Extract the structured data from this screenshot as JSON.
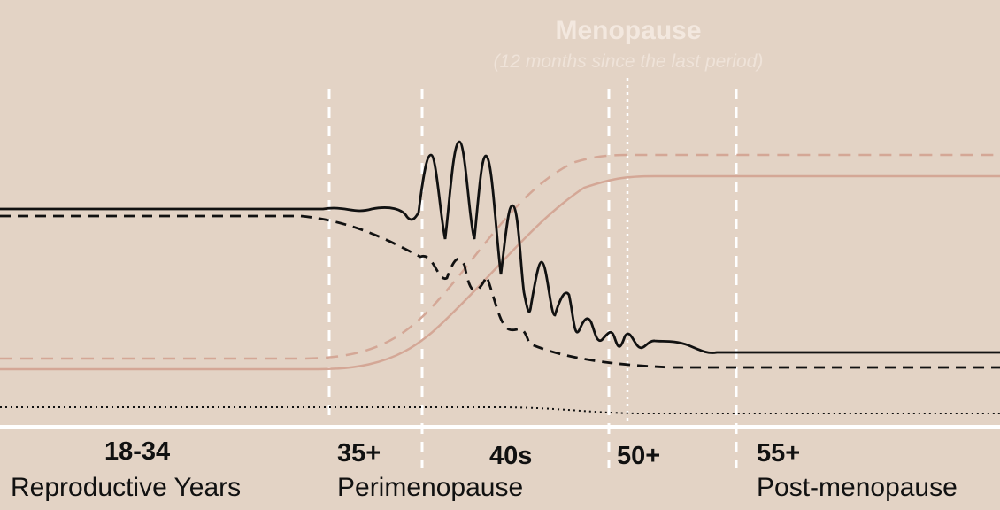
{
  "menopause": {
    "title": "Menopause",
    "subtitle": "(12 months since the last period)"
  },
  "stages": [
    {
      "age": "18-34",
      "name": "Reproductive Years"
    },
    {
      "age": "35+",
      "name": "Perimenopause"
    },
    {
      "age": "40s",
      "name": ""
    },
    {
      "age": "50+",
      "name": ""
    },
    {
      "age": "55+",
      "name": "Post-menopause"
    }
  ],
  "colors": {
    "background": "#e3d3c5",
    "hormone_black": "#111111",
    "hormone_pink": "#d4a796",
    "divider": "#ffffff"
  }
}
